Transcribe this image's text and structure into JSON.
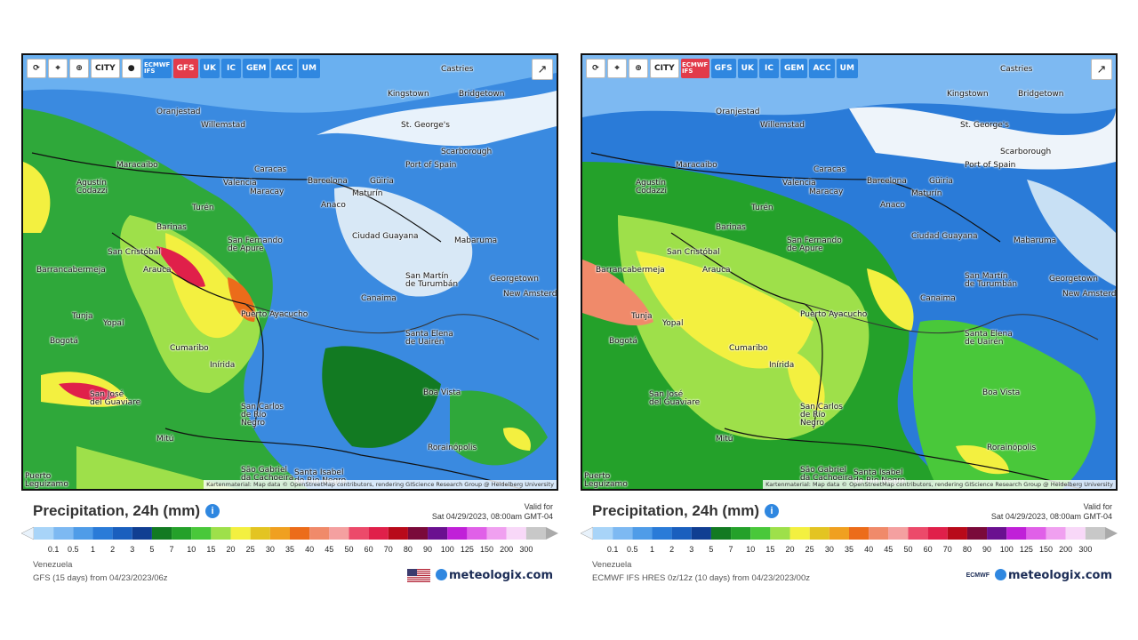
{
  "toolbar_buttons": [
    "⟳",
    "⌖",
    "⊕",
    "CITY",
    "●"
  ],
  "models": [
    "ECMWF IFS",
    "GFS",
    "UK",
    "IC",
    "GEM",
    "ACC",
    "UM"
  ],
  "places": [
    "Castries",
    "Kingstown",
    "Bridgetown",
    "Oranjestad",
    "Willemstad",
    "St. George's",
    "Scarborough",
    "Port of Spain",
    "Maracaibo",
    "Caracas",
    "Barcelona",
    "Güiria",
    "Maturín",
    "Agustín Codazzi",
    "Valencia",
    "Maracay",
    "Turén",
    "Anaco",
    "Barinas",
    "San Fernando de Apure",
    "Ciudad Guayana",
    "Mabaruma",
    "San Cristóbal",
    "Arauca",
    "Barrancabermeja",
    "San Martín de Turumbán",
    "Georgetown",
    "New Amsterdam",
    "Canaima",
    "Tunja",
    "Yopal",
    "Puerto Ayacucho",
    "Bogotá",
    "Cumaribo",
    "Santa Elena de Uairén",
    "Inírida",
    "Boa Vista",
    "San José del Guaviare",
    "San Carlos de Río Negro",
    "Mitú",
    "Rorainópolis",
    "São Gabriel da Cachoeira",
    "Santa Isabel do Rio Negro",
    "Puerto Leguízamo"
  ],
  "panels": [
    {
      "active_model": "GFS",
      "credit": "Kartenmaterial: Map data © OpenStreetMap contributors, rendering GIScience Research Group @ Heidelberg University",
      "title": "Precipitation, 24h (mm)",
      "info_icon": "i",
      "valid_label": "Valid for",
      "valid_time": "Sat 04/29/2023, 08:00am GMT-04",
      "region": "Venezuela",
      "model_line": "GFS (15 days) from 04/23/2023/06z",
      "brand": "meteologix.com",
      "brand_badge": "us-flag-icon"
    },
    {
      "active_model": "ECMWF IFS",
      "credit": "Kartenmaterial: Map data © OpenStreetMap contributors, rendering GIScience Research Group @ Heidelberg University",
      "title": "Precipitation, 24h (mm)",
      "info_icon": "i",
      "valid_label": "Valid for",
      "valid_time": "Sat 04/29/2023, 08:00am GMT-04",
      "region": "Venezuela",
      "model_line": "ECMWF IFS HRES 0z/12z (10 days) from 04/23/2023/00z",
      "brand": "meteologix.com",
      "brand_badge": "ECMWF"
    }
  ],
  "scale": {
    "ticks": [
      "0.1",
      "0.5",
      "1",
      "2",
      "3",
      "5",
      "7",
      "10",
      "15",
      "20",
      "25",
      "30",
      "35",
      "40",
      "45",
      "50",
      "60",
      "70",
      "80",
      "90",
      "100",
      "125",
      "150",
      "200",
      "300"
    ],
    "colors": [
      "#a8d4f8",
      "#7db9f2",
      "#4f9ce8",
      "#2a7bd8",
      "#1a5fbe",
      "#103e92",
      "#127a22",
      "#24a12a",
      "#49c83a",
      "#9ee04a",
      "#f3f040",
      "#e3c422",
      "#f0a020",
      "#ec6c1a",
      "#f08a6a",
      "#f4a0a0",
      "#ec4a6a",
      "#e0204a",
      "#b80a1a",
      "#7a0a3a",
      "#6a1090",
      "#c020d8",
      "#e060e8",
      "#f0a0f0",
      "#f8d8f8",
      "#c8c8c8"
    ]
  }
}
